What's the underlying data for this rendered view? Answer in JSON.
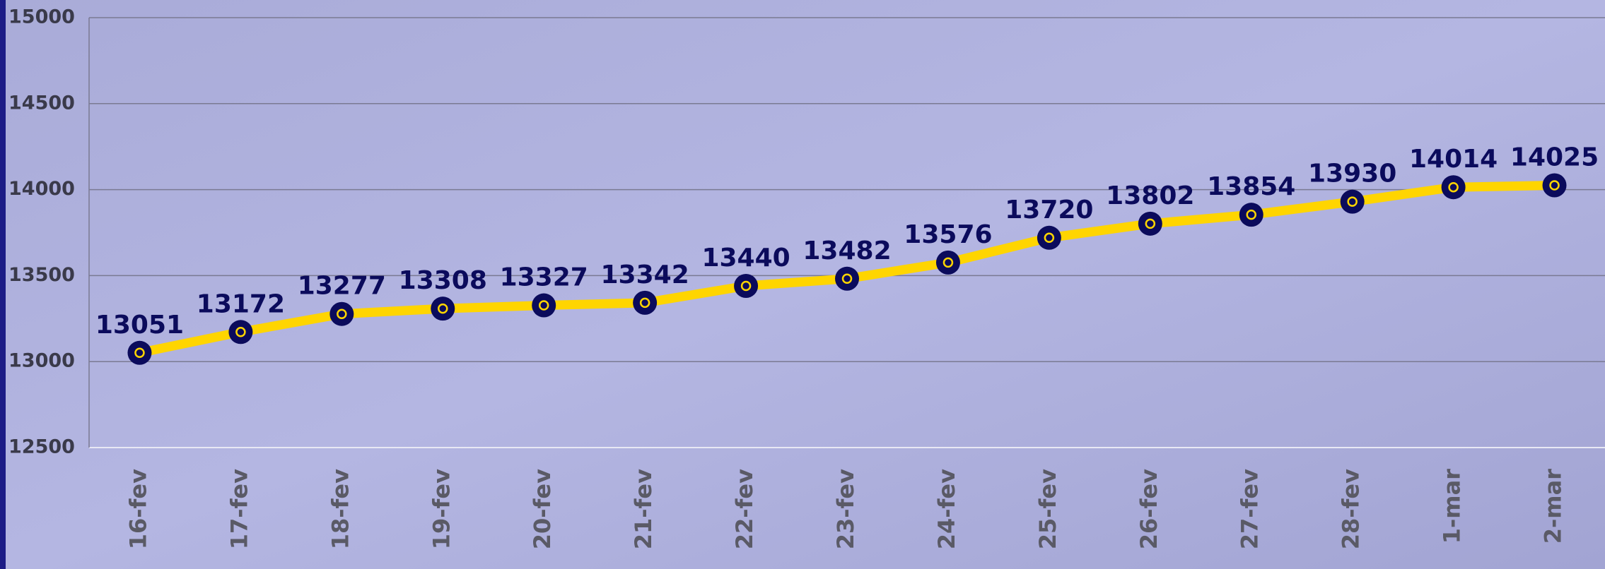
{
  "chart_data": {
    "type": "line",
    "categories": [
      "16-fev",
      "17-fev",
      "18-fev",
      "19-fev",
      "20-fev",
      "21-fev",
      "22-fev",
      "23-fev",
      "24-fev",
      "25-fev",
      "26-fev",
      "27-fev",
      "28-fev",
      "1-mar",
      "2-mar"
    ],
    "values": [
      13051,
      13172,
      13277,
      13308,
      13327,
      13342,
      13440,
      13482,
      13576,
      13720,
      13802,
      13854,
      13930,
      14014,
      14025
    ],
    "color": "#ffd500",
    "marker_color": "#0b0b5c",
    "ylim": [
      12500,
      15000
    ],
    "yticks": [
      12500,
      13000,
      13500,
      14000,
      14500,
      15000
    ],
    "grid": true
  }
}
